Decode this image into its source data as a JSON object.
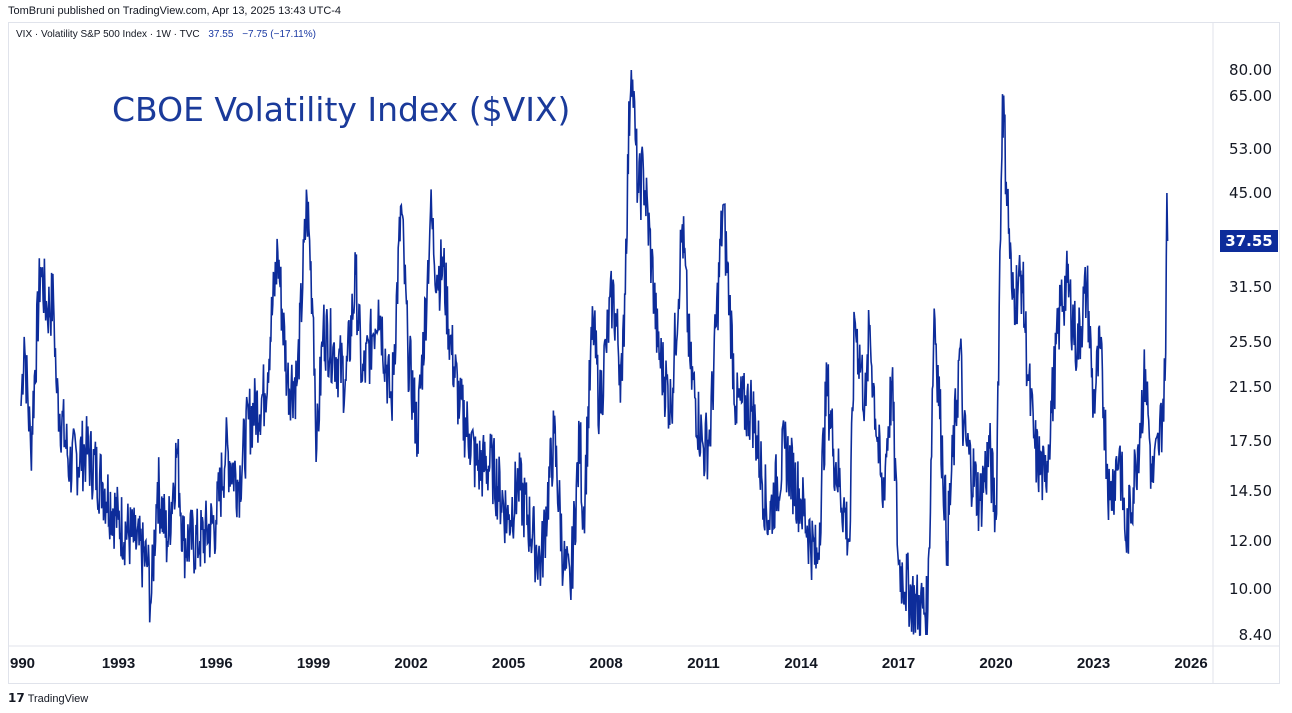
{
  "header": {
    "published": "TomBruni published on TradingView.com, Apr 13, 2025 13:43 UTC-4"
  },
  "legend": {
    "symbol": "VIX · Volatility S&P 500 Index · 1W · TVC",
    "last": "37.55",
    "change": "−7.75 (−17.11%)"
  },
  "footer": {
    "brand": "TradingView"
  },
  "colors": {
    "line": "#0d2c9a",
    "price_tag": "#0d2c9a"
  },
  "chart_data": {
    "type": "line",
    "title": "CBOE Volatility Index ($VIX)",
    "scale": "log",
    "ylim": [
      8.4,
      80
    ],
    "xlim": [
      1990,
      2026
    ],
    "y_ticks": [
      "80.00",
      "65.00",
      "53.00",
      "45.00",
      "31.50",
      "25.50",
      "21.50",
      "17.50",
      "14.50",
      "12.00",
      "10.00",
      "8.40"
    ],
    "x_ticks": [
      "990",
      "1993",
      "1996",
      "1999",
      "2002",
      "2005",
      "2008",
      "2011",
      "2014",
      "2017",
      "2020",
      "2023",
      "2026"
    ],
    "last_value_label": "37.55",
    "series": [
      {
        "name": "VIX weekly close",
        "points": [
          [
            1990.0,
            20
          ],
          [
            1990.1,
            26
          ],
          [
            1990.3,
            17
          ],
          [
            1990.6,
            34
          ],
          [
            1990.8,
            29
          ],
          [
            1991.0,
            30
          ],
          [
            1991.1,
            21
          ],
          [
            1991.5,
            16
          ],
          [
            1992.0,
            17
          ],
          [
            1992.5,
            15
          ],
          [
            1993.0,
            13
          ],
          [
            1993.5,
            12
          ],
          [
            1993.9,
            11
          ],
          [
            1994.0,
            9.5
          ],
          [
            1994.2,
            15
          ],
          [
            1994.5,
            12
          ],
          [
            1994.8,
            17
          ],
          [
            1995.0,
            12
          ],
          [
            1995.5,
            12
          ],
          [
            1996.0,
            13
          ],
          [
            1996.3,
            17
          ],
          [
            1996.7,
            15
          ],
          [
            1997.0,
            19
          ],
          [
            1997.5,
            21
          ],
          [
            1997.9,
            36
          ],
          [
            1998.2,
            22
          ],
          [
            1998.5,
            22
          ],
          [
            1998.8,
            44
          ],
          [
            1999.0,
            28
          ],
          [
            1999.1,
            17
          ],
          [
            1999.3,
            27
          ],
          [
            1999.6,
            25
          ],
          [
            2000.0,
            22
          ],
          [
            2000.3,
            33
          ],
          [
            2000.5,
            22
          ],
          [
            2000.8,
            26
          ],
          [
            2001.0,
            30
          ],
          [
            2001.4,
            20
          ],
          [
            2001.7,
            43
          ],
          [
            2001.9,
            25
          ],
          [
            2002.2,
            18
          ],
          [
            2002.5,
            32
          ],
          [
            2002.6,
            42
          ],
          [
            2002.8,
            33
          ],
          [
            2003.0,
            34
          ],
          [
            2003.2,
            26
          ],
          [
            2003.5,
            20
          ],
          [
            2003.8,
            18
          ],
          [
            2004.0,
            16
          ],
          [
            2004.5,
            16
          ],
          [
            2005.0,
            13
          ],
          [
            2005.3,
            15
          ],
          [
            2005.8,
            12
          ],
          [
            2006.0,
            11
          ],
          [
            2006.4,
            18
          ],
          [
            2006.7,
            11
          ],
          [
            2006.9,
            10
          ],
          [
            2007.2,
            18
          ],
          [
            2007.3,
            13
          ],
          [
            2007.6,
            28
          ],
          [
            2007.8,
            20
          ],
          [
            2008.0,
            25
          ],
          [
            2008.2,
            31
          ],
          [
            2008.5,
            22
          ],
          [
            2008.78,
            80
          ],
          [
            2008.9,
            55
          ],
          [
            2009.0,
            45
          ],
          [
            2009.15,
            49
          ],
          [
            2009.4,
            35
          ],
          [
            2009.6,
            25
          ],
          [
            2010.0,
            20
          ],
          [
            2010.35,
            40
          ],
          [
            2010.6,
            23
          ],
          [
            2011.0,
            17
          ],
          [
            2011.2,
            18
          ],
          [
            2011.6,
            43
          ],
          [
            2011.8,
            30
          ],
          [
            2012.0,
            20
          ],
          [
            2012.5,
            20
          ],
          [
            2013.0,
            13
          ],
          [
            2013.5,
            17
          ],
          [
            2014.0,
            14
          ],
          [
            2014.5,
            11
          ],
          [
            2014.8,
            22
          ],
          [
            2015.0,
            17
          ],
          [
            2015.5,
            12
          ],
          [
            2015.65,
            28
          ],
          [
            2016.0,
            20
          ],
          [
            2016.1,
            27
          ],
          [
            2016.5,
            14
          ],
          [
            2016.8,
            22
          ],
          [
            2017.0,
            11
          ],
          [
            2017.5,
            9.5
          ],
          [
            2017.9,
            9.2
          ],
          [
            2018.1,
            29
          ],
          [
            2018.5,
            12
          ],
          [
            2018.9,
            25
          ],
          [
            2019.0,
            18
          ],
          [
            2019.5,
            14
          ],
          [
            2019.8,
            17
          ],
          [
            2020.0,
            13
          ],
          [
            2020.2,
            66
          ],
          [
            2020.5,
            30
          ],
          [
            2020.8,
            33
          ],
          [
            2021.0,
            22
          ],
          [
            2021.2,
            17
          ],
          [
            2021.5,
            15
          ],
          [
            2022.0,
            30
          ],
          [
            2022.2,
            32
          ],
          [
            2022.5,
            25
          ],
          [
            2022.8,
            32
          ],
          [
            2023.0,
            20
          ],
          [
            2023.2,
            25
          ],
          [
            2023.5,
            14
          ],
          [
            2023.8,
            17
          ],
          [
            2024.0,
            12
          ],
          [
            2024.3,
            16
          ],
          [
            2024.6,
            23
          ],
          [
            2024.8,
            15
          ],
          [
            2025.0,
            17
          ],
          [
            2025.2,
            22
          ],
          [
            2025.26,
            45
          ],
          [
            2025.28,
            37.55
          ]
        ]
      }
    ]
  }
}
